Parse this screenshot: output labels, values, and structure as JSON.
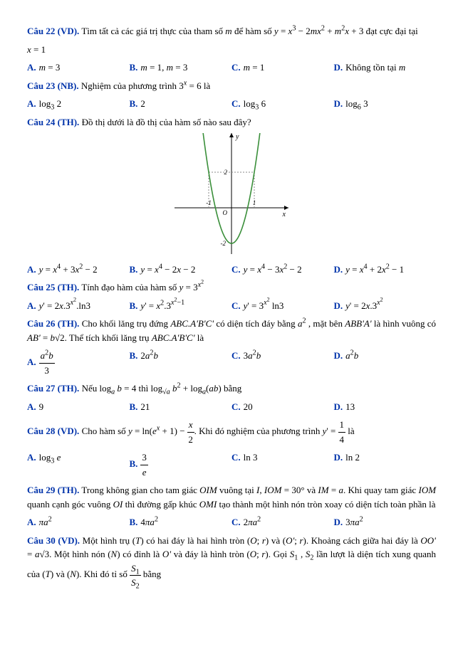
{
  "q22": {
    "label": "Câu 22 (VD).",
    "text_before": " Tìm tất cả các giá trị thực của tham số ",
    "m": "m",
    "text_mid": " để hàm số ",
    "func": "y = x³ − 2mx² + m²x + 3",
    "text_after": "  đạt cực đại tại",
    "cond": "x = 1",
    "A": "m = 3",
    "B": "m = 1, m = 3",
    "C": "m = 1",
    "D": "Không tồn tại m"
  },
  "q23": {
    "label": "Câu 23 (NB).",
    "text": " Nghiệm của phương trình  3ˣ = 6  là",
    "A": "log₃ 2",
    "B": "2",
    "C": "log₃ 6",
    "D": "log₆ 3"
  },
  "q24": {
    "label": "Câu 24 (TH).",
    "text": " Đồ thị dưới là đồ thị của hàm số nào sau đây?",
    "graph": {
      "curve_color": "#3a8f3a",
      "axis_color": "#000000",
      "grid_color": "#888888",
      "bg": "#ffffff",
      "xlim": [
        -2.5,
        2.5
      ],
      "ylim": [
        -2.6,
        4.2
      ],
      "curve_type": "quartic-like-parabola",
      "minimum_point": [
        0,
        -2
      ],
      "y_marker": 2,
      "x_markers": [
        -1,
        1
      ],
      "origin_label": "O",
      "x_axis_label": "x",
      "y_axis_label": "y"
    },
    "A": "y = x⁴ + 3x² − 2",
    "B": "y = x⁴ − 2x − 2",
    "C": "y = x⁴ − 3x² − 2",
    "D": "y = x⁴ + 2x² − 1"
  },
  "q25": {
    "label": "Câu 25 (TH).",
    "text_before": " Tính đạo hàm của hàm số ",
    "func": "y = 3^(x²)",
    "A": "y' = 2x.3^(x²).ln3",
    "B": "y' = x².3^(x²−1)",
    "C": "y' = 3^(x²) ln3",
    "D": "y' = 2x.3^(x²)"
  },
  "q26": {
    "label": "Câu 26 (TH).",
    "para": " Cho khối lăng trụ đứng  ABC.A'B'C'  có diện tích đáy bằng  a² , mặt bên  ABB'A'  là hình vuông có  AB' = b√2.  Thể tích khối lăng trụ  ABC.A'B'C'  là",
    "A": "a²b / 3",
    "B": "2a²b",
    "C": "3a²b",
    "D": "a²b"
  },
  "q27": {
    "label": "Câu 27 (TH).",
    "text": " Nếu  logₐ b = 4  thì  log_{√a} b² + logₐ(ab)  bằng",
    "A": "9",
    "B": "21",
    "C": "20",
    "D": "13"
  },
  "q28": {
    "label": "Câu 28 (VD).",
    "text_before": " Cho hàm số ",
    "func": "y = ln(eˣ + 1) − x/2",
    "text_mid": ". Khi đó nghiệm của phương trình ",
    "eq": "y' = 1/4",
    "text_after": " là",
    "A": "log₃ e",
    "B": "3 / e",
    "C": "ln 3",
    "D": "ln 2"
  },
  "q29": {
    "label": "Câu 29 (TH).",
    "para": " Trong không gian cho tam giác OIM vuông tại I,  IOM = 30°  và  IM = a.  Khi quay tam giác IOM quanh cạnh góc vuông OI thì đường gấp khúc OMI tạo thành một hình nón tròn xoay có diện tích toàn phần là",
    "A": "πa²",
    "B": "4πa²",
    "C": "2πa²",
    "D": "3πa²"
  },
  "q30": {
    "label": "Câu 30 (VD).",
    "para": " Một hình trụ (T) có hai đáy là hai hình tròn (O; r)  và (O'; r). Khoảng cách giữa hai đáy là OO' = a√3.  Một hình nón (N) có đỉnh là O'  và đáy là hình tròn (O; r). Gọi  S₁ , S₂  lần lượt là diện tích xung quanh của (T) và (N). Khi đó tỉ số  S₁/S₂  bằng"
  }
}
